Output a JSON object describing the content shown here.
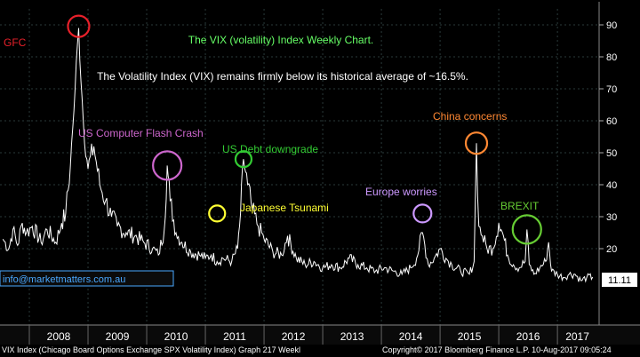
{
  "chart_data": {
    "type": "line",
    "title": "The VIX (volatility) Index Weekly Chart.",
    "subtitle": "The Volatility Index (VIX) remains firmly below its historical average of ~16.5%.",
    "series": [
      {
        "x": [
          2007.55,
          2007.65,
          2007.72,
          2007.8,
          2007.88,
          2007.95,
          2008.05,
          2008.2,
          2008.3,
          2008.45,
          2008.55,
          2008.62,
          2008.7,
          2008.74,
          2008.78,
          2008.84,
          2008.92,
          2009.0,
          2009.1,
          2009.2,
          2009.3,
          2009.4,
          2009.5,
          2009.65,
          2009.8,
          2009.95,
          2010.1,
          2010.2,
          2010.3,
          2010.35,
          2010.4,
          2010.5,
          2010.6,
          2010.75,
          2010.9,
          2011.0,
          2011.1,
          2011.2,
          2011.3,
          2011.45,
          2011.55,
          2011.6,
          2011.65,
          2011.72,
          2011.8,
          2011.9,
          2012.0,
          2012.15,
          2012.3,
          2012.4,
          2012.55,
          2012.7,
          2012.85,
          2013.0,
          2013.15,
          2013.3,
          2013.45,
          2013.6,
          2013.75,
          2013.9,
          2014.05,
          2014.2,
          2014.35,
          2014.5,
          2014.6,
          2014.7,
          2014.8,
          2014.9,
          2015.0,
          2015.1,
          2015.2,
          2015.35,
          2015.5,
          2015.58,
          2015.62,
          2015.66,
          2015.72,
          2015.8,
          2015.9,
          2016.0,
          2016.08,
          2016.15,
          2016.25,
          2016.35,
          2016.45,
          2016.48,
          2016.52,
          2016.6,
          2016.7,
          2016.8,
          2016.85,
          2016.9,
          2017.0,
          2017.1,
          2017.2,
          2017.3,
          2017.4,
          2017.5,
          2017.6
        ],
        "y": [
          23,
          20,
          26,
          21,
          28,
          25,
          27,
          22,
          26,
          22,
          28,
          31,
          46,
          58,
          70,
          89,
          60,
          45,
          52,
          40,
          35,
          30,
          27,
          25,
          24,
          22,
          20,
          18,
          26,
          46,
          35,
          25,
          22,
          19,
          18,
          17,
          18,
          16,
          17,
          16,
          20,
          31,
          48,
          40,
          32,
          27,
          23,
          19,
          18,
          24,
          17,
          15,
          16,
          14,
          15,
          14,
          17,
          15,
          14,
          13,
          14,
          13,
          12,
          14,
          17,
          25,
          15,
          17,
          20,
          17,
          15,
          13,
          12,
          16,
          53,
          27,
          24,
          20,
          20,
          28,
          24,
          18,
          15,
          14,
          16,
          26,
          15,
          12,
          14,
          16,
          22,
          13,
          12,
          11,
          12,
          12,
          10,
          11,
          11.11
        ]
      }
    ],
    "xlim": [
      2007.5,
      2017.68
    ],
    "ylim": [
      0,
      95
    ],
    "x_tick_labels": [
      "2008",
      "2009",
      "2010",
      "2011",
      "2012",
      "2013",
      "2014",
      "2015",
      "2016",
      "2017"
    ],
    "y_ticks": [
      20,
      30,
      40,
      50,
      60,
      70,
      80,
      90
    ],
    "last_value_label": "11.11",
    "annotations": [
      {
        "label": "GFC",
        "x": 2008.84,
        "y": 89,
        "color": "#e8202a"
      },
      {
        "label": "US Computer Flash Crash",
        "x": 2010.35,
        "y": 46,
        "color": "#cc66cc"
      },
      {
        "label": "US Debt downgrade",
        "x": 2011.65,
        "y": 48,
        "color": "#33cc33"
      },
      {
        "label": "Japanese Tsunami",
        "x": 2011.2,
        "y": 31,
        "color": "#ffff33"
      },
      {
        "label": "Europe worries",
        "x": 2014.7,
        "y": 31,
        "color": "#cc99ff"
      },
      {
        "label": "China concerns",
        "x": 2015.62,
        "y": 53,
        "color": "#ff8833"
      },
      {
        "label": "BREXIT",
        "x": 2016.48,
        "y": 26,
        "color": "#66cc33"
      }
    ],
    "watermark": "info@marketmatters.com.au",
    "grid": true
  },
  "colors": {
    "background": "#000000",
    "line": "#ffffff",
    "grid": "#2a3a3a",
    "title": "#66ff66",
    "subtitle": "#ffffff",
    "axis_text": "#ffffff",
    "year_band": "#1a1a1a",
    "watermark": "#4aa8ff"
  },
  "footer": {
    "left": "VIX Index (Chicago Board Options Exchange SPX Volatility Index) Graph 217  Weekl",
    "right": "Copyright© 2017 Bloomberg Finance L.P.     10-Aug-2017 09:05:24"
  }
}
